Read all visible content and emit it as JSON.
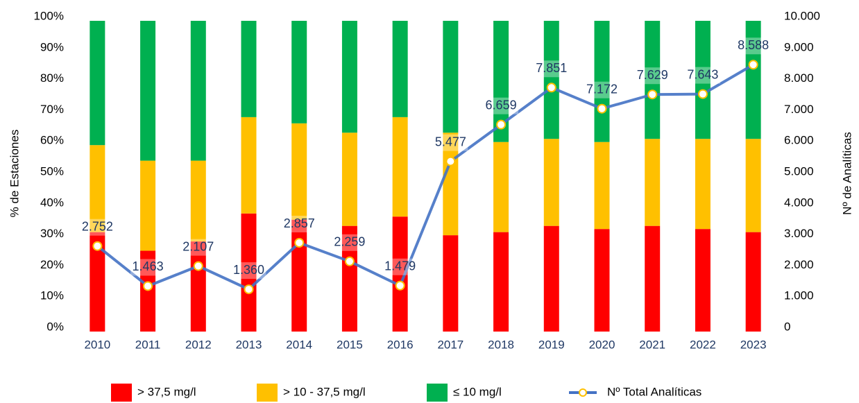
{
  "chart_data": {
    "type": "bar",
    "stacked": true,
    "categories": [
      "2010",
      "2011",
      "2012",
      "2013",
      "2014",
      "2015",
      "2016",
      "2017",
      "2018",
      "2019",
      "2020",
      "2021",
      "2022",
      "2023"
    ],
    "series": [
      {
        "name": "> 37,5 mg/l",
        "color": "#ff0000",
        "values": [
          32,
          26,
          29,
          38,
          36,
          34,
          37,
          31,
          32,
          34,
          33,
          34,
          33,
          32
        ]
      },
      {
        "name": ">  10 - 37,5 mg/l",
        "color": "#ffc000",
        "values": [
          28,
          29,
          26,
          31,
          31,
          30,
          32,
          33,
          29,
          28,
          28,
          28,
          29,
          30
        ]
      },
      {
        "name": "≤ 10 mg/l",
        "color": "#00b050",
        "values": [
          40,
          45,
          45,
          31,
          33,
          36,
          31,
          36,
          39,
          38,
          39,
          38,
          38,
          38
        ]
      },
      {
        "name": "Nº Total Analíticas",
        "type": "line",
        "axis": "y2",
        "color": "#4472c4",
        "values": [
          2752,
          1463,
          2107,
          1360,
          2857,
          2259,
          1479,
          5477,
          6659,
          7851,
          7172,
          7629,
          7643,
          8588
        ],
        "value_labels": [
          "2.752",
          "1.463",
          "2.107",
          "1.360",
          "2.857",
          "2.259",
          "1.479",
          "5.477",
          "6.659",
          "7.851",
          "7.172",
          "7.629",
          "7.643",
          "8.588"
        ]
      }
    ],
    "ylabel": "% de Estaciones",
    "y2label": "Nº de Analíticas",
    "ylim": [
      0,
      100
    ],
    "yticks": [
      {
        "value": 0,
        "label": "0%"
      },
      {
        "value": 10,
        "label": "10%"
      },
      {
        "value": 20,
        "label": "20%"
      },
      {
        "value": 30,
        "label": "30%"
      },
      {
        "value": 40,
        "label": "40%"
      },
      {
        "value": 50,
        "label": "50%"
      },
      {
        "value": 60,
        "label": "60%"
      },
      {
        "value": 70,
        "label": "70%"
      },
      {
        "value": 80,
        "label": "80%"
      },
      {
        "value": 90,
        "label": "90%"
      },
      {
        "value": 100,
        "label": "100%"
      }
    ],
    "y2lim": [
      0,
      10000
    ],
    "y2ticks": [
      0,
      {
        "value": 1000,
        "label": "1.000"
      },
      {
        "value": 2000,
        "label": "2.000"
      },
      {
        "value": 3000,
        "label": "3.000"
      },
      {
        "value": 4000,
        "label": "4.000"
      },
      {
        "value": 5000,
        "label": "5.000"
      },
      {
        "value": 6000,
        "label": "6.000"
      },
      {
        "value": 7000,
        "label": "7.000"
      },
      {
        "value": 8000,
        "label": "8.000"
      },
      {
        "value": 9000,
        "label": "9.000"
      },
      {
        "value": 10000,
        "label": "10.000"
      }
    ],
    "grid": false,
    "legend": "bottom"
  }
}
